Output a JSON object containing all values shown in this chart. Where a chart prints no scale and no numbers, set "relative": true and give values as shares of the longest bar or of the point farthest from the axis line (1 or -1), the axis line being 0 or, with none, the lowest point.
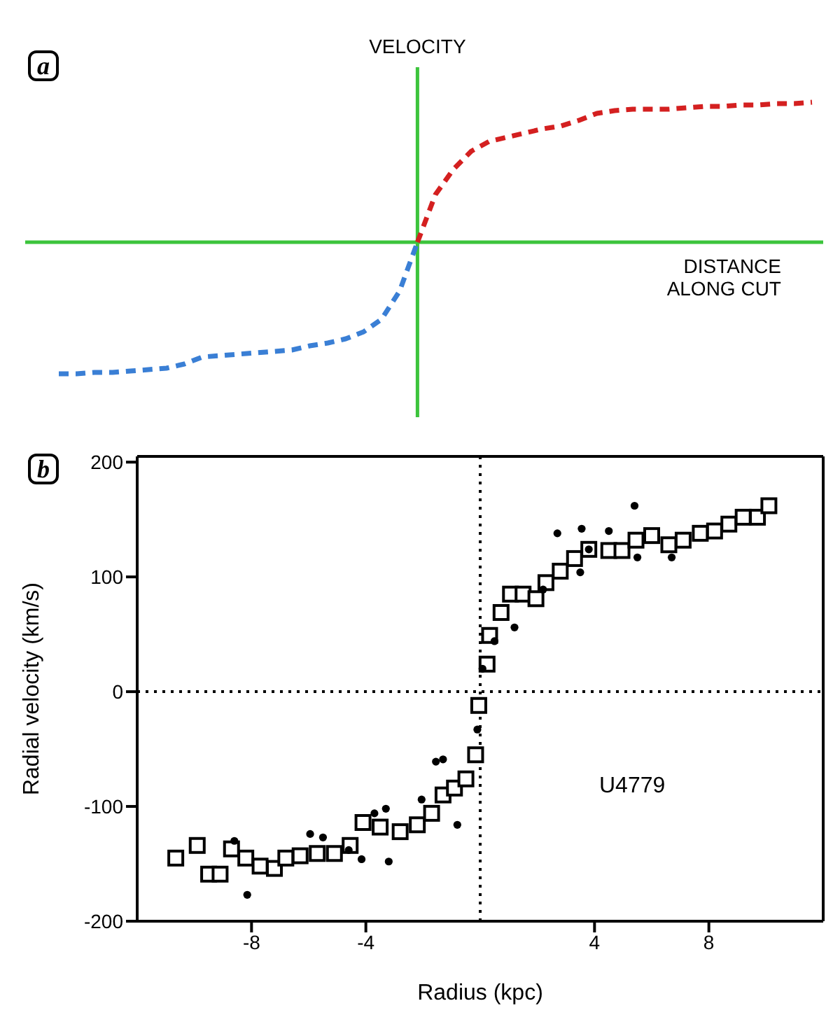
{
  "chart_data": [
    {
      "type": "line",
      "relative": true,
      "ylabel": "VELOCITY",
      "xlabel": "DISTANCE ALONG CUT",
      "annotations": [
        "a"
      ],
      "line_style": "dashed",
      "marker": "none",
      "ref_lines": [
        {
          "axis": "y",
          "value": 0,
          "color": "#3cc43c",
          "line_style": "solid"
        }
      ],
      "categories": [
        null,
        null,
        null,
        null,
        null,
        null,
        null,
        null,
        null,
        null,
        null,
        null,
        null,
        null,
        null,
        null,
        null,
        null,
        null,
        null,
        null,
        null,
        null,
        null,
        null,
        null,
        null,
        null,
        null,
        null,
        null,
        null,
        null,
        null,
        null,
        null,
        null,
        null,
        null,
        null,
        null,
        null,
        null
      ],
      "series": [
        {
          "color": "#3a7fd5",
          "values": [
            -0.94,
            -0.94,
            -0.93,
            -0.93,
            -0.92,
            -0.91,
            -0.9,
            -0.87,
            -0.82,
            -0.81,
            -0.8,
            -0.79,
            -0.78,
            -0.77,
            -0.74,
            -0.72,
            -0.69,
            -0.64,
            -0.55,
            -0.35,
            0,
            null,
            null,
            null,
            null,
            null,
            null,
            null,
            null,
            null,
            null,
            null,
            null,
            null,
            null,
            null,
            null,
            null,
            null,
            null,
            null,
            null,
            null
          ]
        },
        {
          "color": "#d42020",
          "values": [
            null,
            null,
            null,
            null,
            null,
            null,
            null,
            null,
            null,
            null,
            null,
            null,
            null,
            null,
            null,
            null,
            null,
            null,
            null,
            null,
            0,
            0.34,
            0.52,
            0.65,
            0.72,
            0.75,
            0.78,
            0.81,
            0.83,
            0.87,
            0.92,
            0.94,
            0.95,
            0.95,
            0.95,
            0.96,
            0.97,
            0.97,
            0.98,
            0.98,
            0.99,
            0.99,
            1
          ]
        }
      ]
    },
    {
      "type": "scatter",
      "xlabel": "Radius (kpc)",
      "ylabel": "Radial velocity (km/s)",
      "annotations": [
        "b",
        "U4779"
      ],
      "xlim": [
        -12,
        12
      ],
      "xticks": [
        -8,
        -4,
        4,
        8
      ],
      "ylim": [
        -200,
        205
      ],
      "yticks": [
        -200,
        -100,
        0,
        100,
        200
      ],
      "ref_lines": [
        {
          "axis": "x",
          "value": 0,
          "color": "#000000",
          "line_style": "dotted"
        },
        {
          "axis": "y",
          "value": 0,
          "color": "#000000",
          "line_style": "dotted"
        }
      ],
      "series": [
        {
          "color": "#000000",
          "marker": "square",
          "x": [
            -10.65,
            -9.9,
            -9.5,
            -9.1,
            -8.7,
            -8.2,
            -7.7,
            -7.2,
            -6.8,
            -6.3,
            -5.7,
            -5.1,
            -4.55,
            -4.1,
            -3.5,
            -2.8,
            -2.2,
            -1.7,
            -1.3,
            -0.9,
            -0.5,
            -0.16,
            -0.05,
            0.24,
            0.33,
            0.73,
            1.06,
            1.5,
            1.95,
            2.3,
            2.8,
            3.3,
            3.8,
            4.5,
            4.96,
            5.45,
            6.0,
            6.6,
            7.1,
            7.7,
            8.2,
            8.7,
            9.2,
            9.7,
            10.1
          ],
          "values": [
            -145,
            -134,
            -159,
            -159,
            -137,
            -145,
            -152,
            -154,
            -145,
            -143,
            -141,
            -141,
            -134,
            -114,
            -118,
            -122,
            -116,
            -106,
            -90,
            -84,
            -76,
            -55,
            -12,
            24,
            49,
            69,
            85,
            85,
            81,
            95,
            105,
            116,
            124,
            123,
            123,
            132,
            136,
            128,
            132,
            138,
            140,
            146,
            152,
            152,
            162
          ]
        },
        {
          "color": "#000000",
          "marker": "circle",
          "x": [
            -8.15,
            -8.6,
            -5.95,
            -5.5,
            -4.6,
            -4.15,
            -3.7,
            -3.3,
            -3.2,
            -2.05,
            -1.55,
            -1.3,
            -0.8,
            -0.1,
            0.08,
            0.5,
            1.2,
            2.2,
            2.7,
            3.5,
            3.55,
            3.8,
            4.5,
            5.4,
            5.5,
            6.7
          ],
          "values": [
            -177,
            -130,
            -124,
            -127,
            -138,
            -146,
            -106,
            -102,
            -148,
            -94,
            -61,
            -59,
            -116,
            -33,
            20,
            44,
            56,
            89,
            138,
            104,
            142,
            124,
            140,
            162,
            117,
            117
          ]
        }
      ]
    }
  ]
}
